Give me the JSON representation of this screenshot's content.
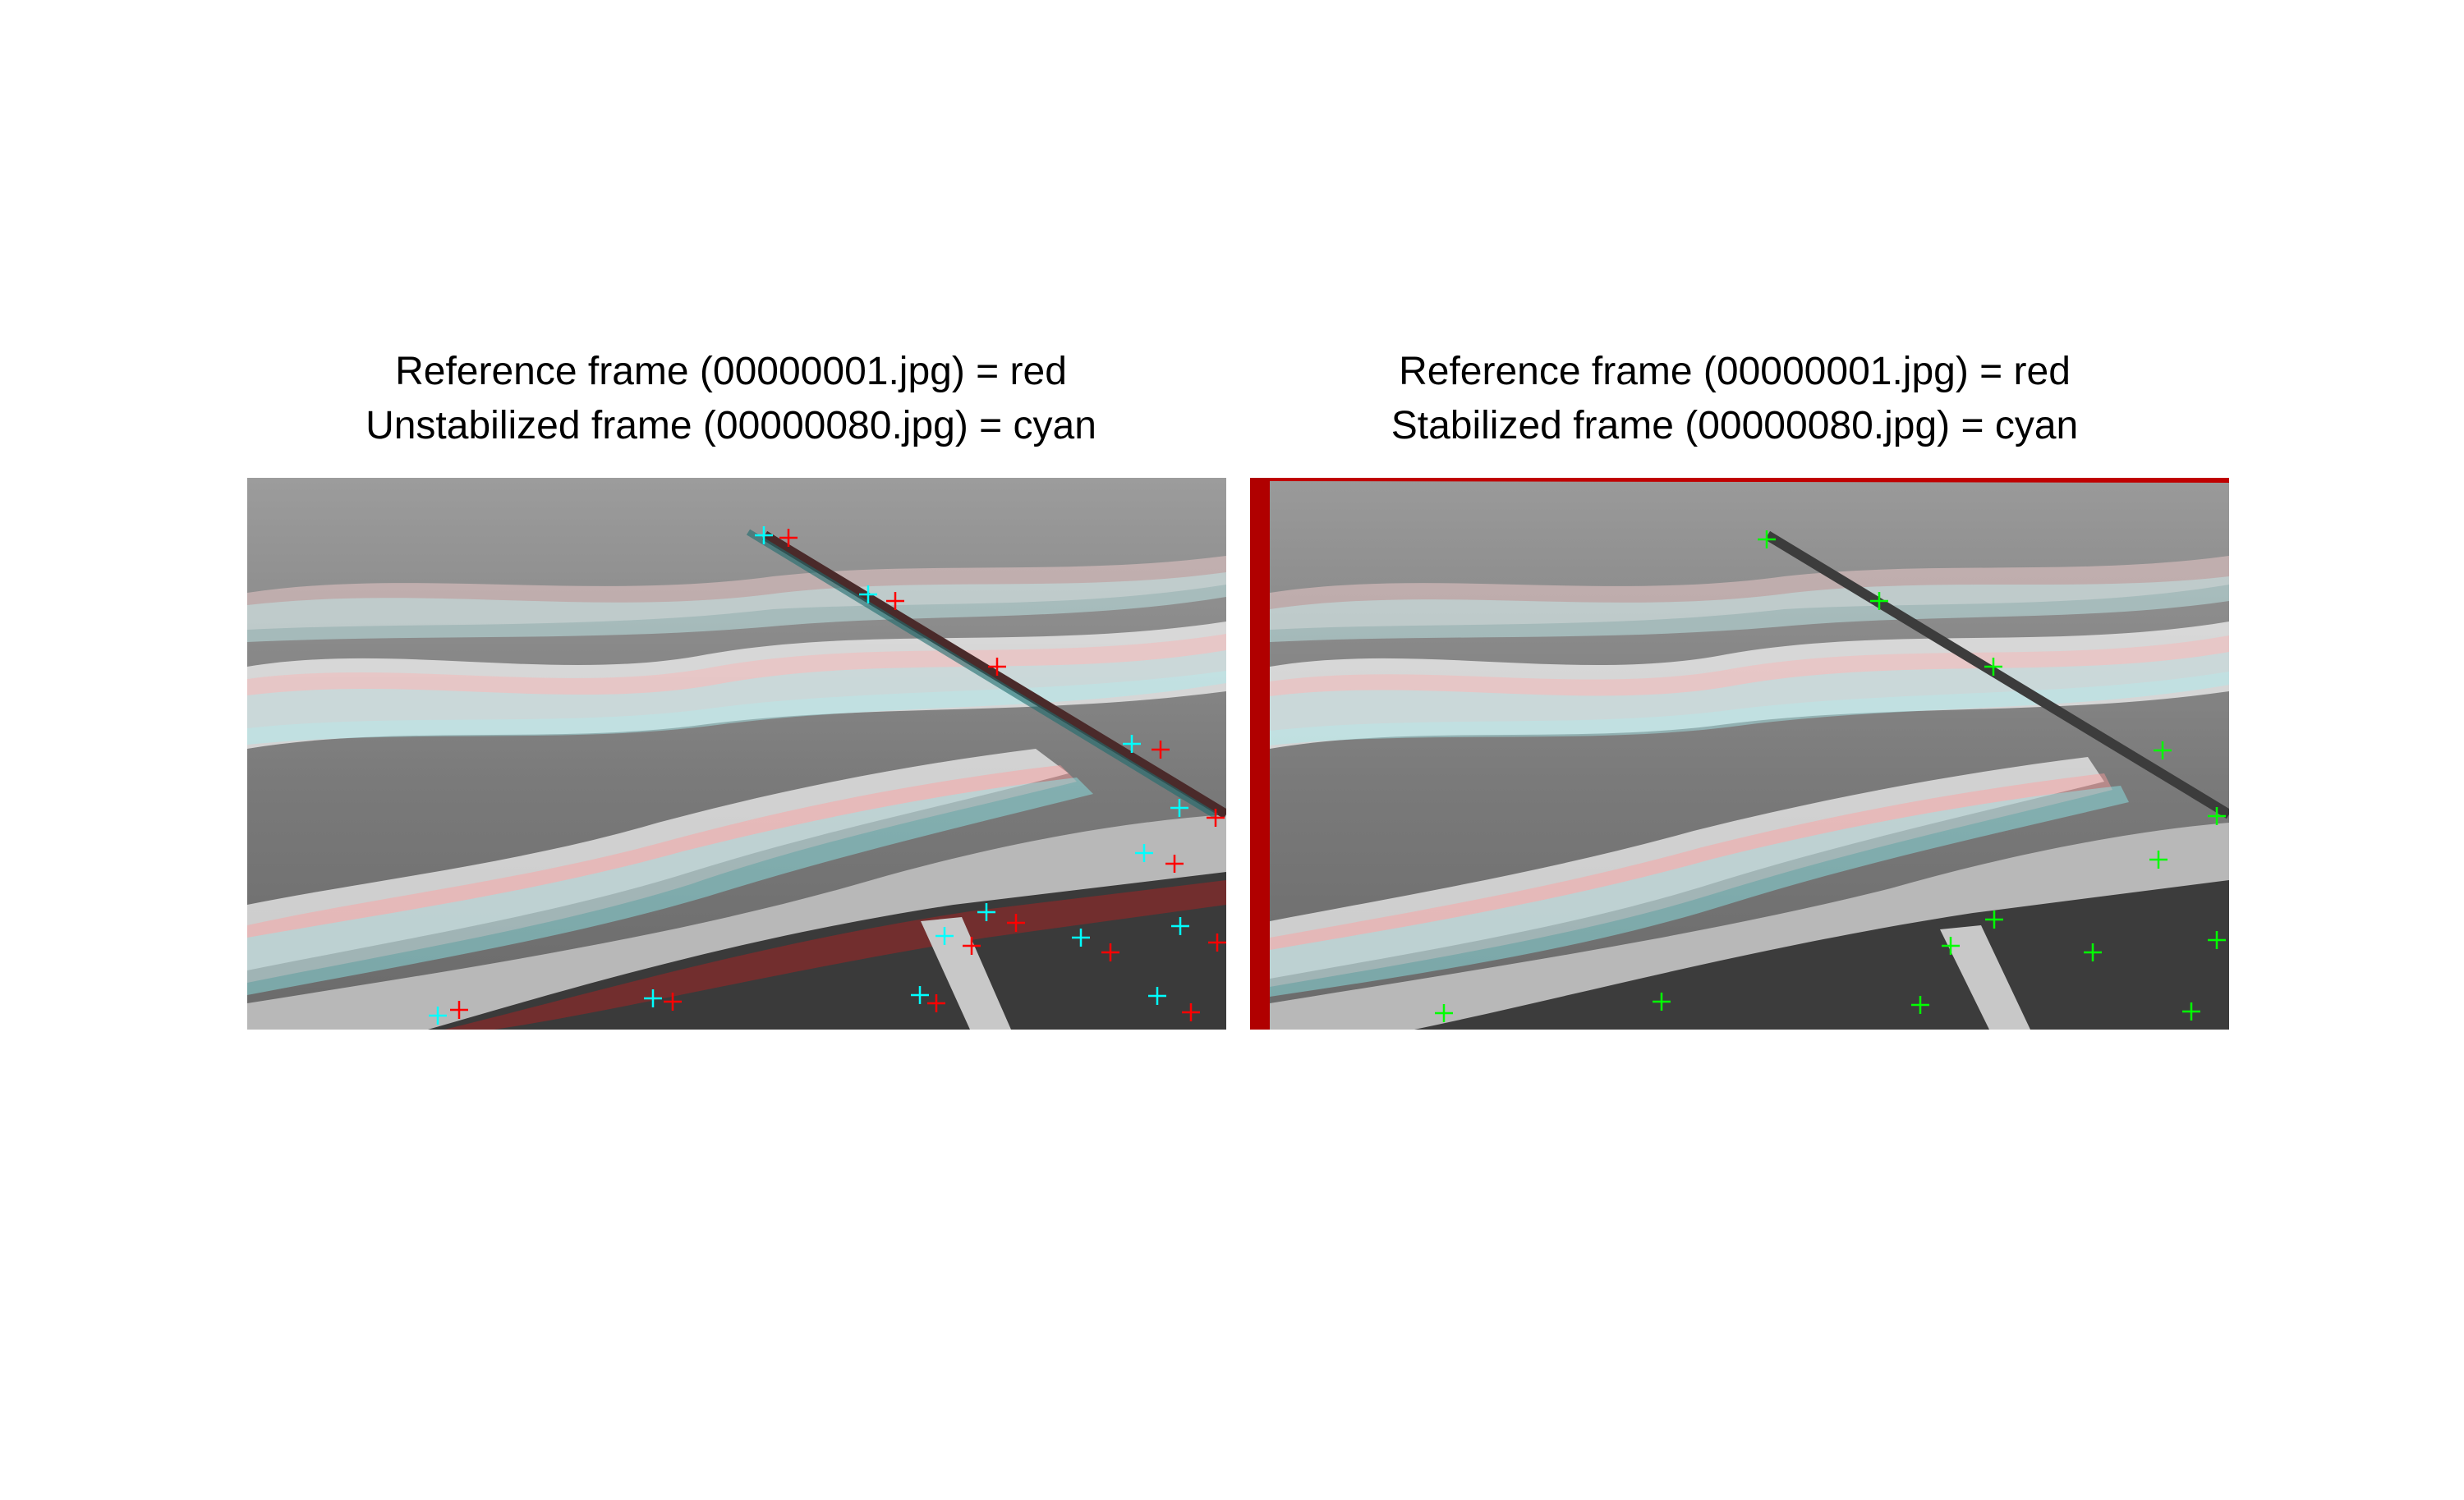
{
  "panels": {
    "left": {
      "title_line1": "Reference frame (00000001.jpg) = red",
      "title_line2": "Unstabilized frame (00000080.jpg) = cyan"
    },
    "right": {
      "title_line1": "Reference frame (00000001.jpg) = red",
      "title_line2": "Stabilized frame (00000080.jpg) = cyan"
    }
  },
  "colors": {
    "reference_frame": "#ff0000",
    "moving_frame": "#00ffff",
    "matched_points": "#00ff00"
  },
  "icons": {
    "marker": "crosshair-plus"
  }
}
